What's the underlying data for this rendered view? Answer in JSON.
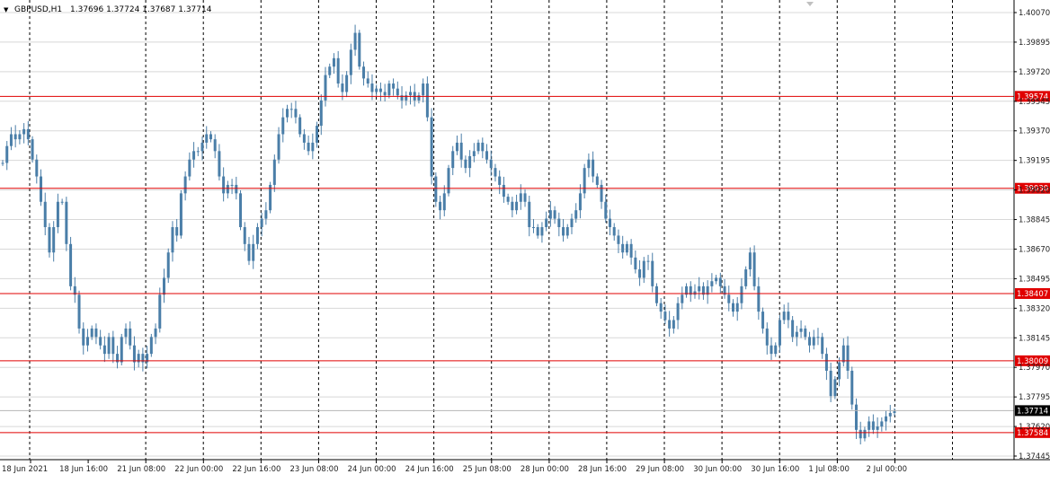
{
  "header": {
    "symbol_label": "GBPUSD,H1",
    "ohlc_label": "1.37696 1.37724 1.37687 1.37714",
    "menu_glyph": "▼"
  },
  "colors": {
    "background": "#ffffff",
    "candle": "#4a7ea8",
    "grid_dash": "#000000",
    "grid_light": "#d8d8d8",
    "level_line": "#e00000",
    "level_label_bg": "#e00000",
    "level_label_text": "#ffffff",
    "bid_line": "#b4b4b4",
    "bid_label_bg": "#000000",
    "bid_label_text": "#ffffff",
    "axis_text": "#222222"
  },
  "chart_data": {
    "type": "candlestick",
    "symbol": "GBPUSD",
    "timeframe": "H1",
    "y_ticks": [
      "1.40070",
      "1.39895",
      "1.39720",
      "1.39545",
      "1.39370",
      "1.39195",
      "1.39020",
      "1.38845",
      "1.38670",
      "1.38495",
      "1.38320",
      "1.38145",
      "1.37970",
      "1.37795",
      "1.37620",
      "1.37445"
    ],
    "ylim": [
      1.37445,
      1.4007
    ],
    "x_ticks": [
      "18 Jun 2021",
      "18 Jun 16:00",
      "21 Jun 08:00",
      "22 Jun 00:00",
      "22 Jun 16:00",
      "23 Jun 08:00",
      "24 Jun 00:00",
      "24 Jun 16:00",
      "25 Jun 08:00",
      "28 Jun 00:00",
      "28 Jun 16:00",
      "29 Jun 08:00",
      "30 Jun 00:00",
      "30 Jun 16:00",
      "1 Jul 08:00",
      "2 Jul 00:00"
    ],
    "horizontal_levels": [
      1.39574,
      1.3903,
      1.38407,
      1.38009,
      1.37584
    ],
    "level_labels": [
      "1.39574",
      "1.39030",
      "1.38407",
      "1.38009",
      "1.37584"
    ],
    "bid_price": 1.37714,
    "bid_label": "1.37714",
    "candles_close": [
      1.3918,
      1.3928,
      1.3935,
      1.3932,
      1.3935,
      1.3938,
      1.3932,
      1.392,
      1.391,
      1.3895,
      1.388,
      1.3865,
      1.388,
      1.3895,
      1.3895,
      1.387,
      1.3845,
      1.384,
      1.382,
      1.381,
      1.3815,
      1.382,
      1.3815,
      1.381,
      1.3805,
      1.3815,
      1.3805,
      1.38,
      1.3815,
      1.382,
      1.381,
      1.38,
      1.3805,
      1.38,
      1.3805,
      1.3815,
      1.382,
      1.384,
      1.385,
      1.3865,
      1.388,
      1.3875,
      1.39,
      1.391,
      1.392,
      1.3925,
      1.3925,
      1.393,
      1.3935,
      1.3932,
      1.3925,
      1.391,
      1.39,
      1.3905,
      1.3905,
      1.39,
      1.388,
      1.387,
      1.386,
      1.387,
      1.388,
      1.3885,
      1.389,
      1.3905,
      1.392,
      1.3935,
      1.3945,
      1.395,
      1.395,
      1.3945,
      1.3935,
      1.393,
      1.3925,
      1.393,
      1.394,
      1.3955,
      1.397,
      1.3975,
      1.398,
      1.3965,
      1.396,
      1.397,
      1.3985,
      1.3995,
      1.3975,
      1.3968,
      1.3965,
      1.396,
      1.3962,
      1.396,
      1.3958,
      1.3965,
      1.3962,
      1.3958,
      1.3955,
      1.3958,
      1.396,
      1.3955,
      1.3958,
      1.3965,
      1.3945,
      1.391,
      1.3895,
      1.389,
      1.39,
      1.3915,
      1.3925,
      1.393,
      1.392,
      1.3915,
      1.3922,
      1.3925,
      1.393,
      1.3925,
      1.392,
      1.3915,
      1.391,
      1.3905,
      1.3898,
      1.3895,
      1.389,
      1.3895,
      1.39,
      1.3895,
      1.388,
      1.388,
      1.3875,
      1.388,
      1.3885,
      1.389,
      1.3885,
      1.388,
      1.3875,
      1.388,
      1.3885,
      1.389,
      1.39,
      1.3915,
      1.392,
      1.391,
      1.3905,
      1.3895,
      1.3885,
      1.388,
      1.3875,
      1.387,
      1.3865,
      1.387,
      1.3862,
      1.3855,
      1.385,
      1.386,
      1.386,
      1.3845,
      1.3835,
      1.383,
      1.3825,
      1.382,
      1.3825,
      1.3835,
      1.384,
      1.3845,
      1.384,
      1.3842,
      1.3845,
      1.384,
      1.3845,
      1.3848,
      1.385,
      1.3845,
      1.384,
      1.3835,
      1.383,
      1.3835,
      1.3845,
      1.3855,
      1.3865,
      1.3845,
      1.383,
      1.382,
      1.381,
      1.3805,
      1.381,
      1.3825,
      1.383,
      1.3825,
      1.3815,
      1.3818,
      1.382,
      1.3815,
      1.381,
      1.3815,
      1.3815,
      1.3805,
      1.3795,
      1.378,
      1.379,
      1.38,
      1.381,
      1.3795,
      1.3775,
      1.376,
      1.3755,
      1.376,
      1.3765,
      1.376,
      1.3762,
      1.3765,
      1.3768,
      1.377,
      1.3771
    ]
  }
}
